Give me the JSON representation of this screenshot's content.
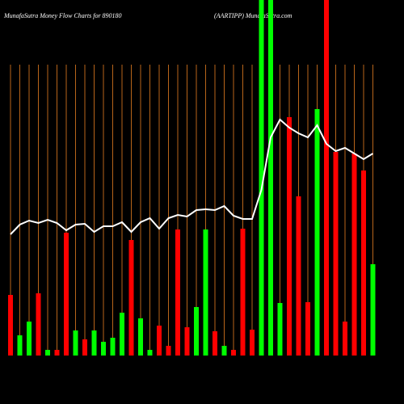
{
  "chart_data": {
    "type": "bar",
    "title": "MunafaSutra  Money Flow  Charts for 890180",
    "subtitle": "(AARTIPP) MunafaSutra.com",
    "categories": [
      null,
      null,
      null,
      null,
      null,
      null,
      null,
      null,
      null,
      null,
      null,
      null,
      null,
      null,
      null,
      null,
      null,
      null,
      null,
      null,
      null,
      null,
      null,
      null,
      null,
      null,
      null,
      null,
      null,
      null,
      null,
      null,
      null,
      null,
      null,
      null,
      null,
      null,
      null,
      null
    ],
    "values": [
      75,
      25,
      42,
      77,
      7,
      7,
      152,
      31,
      20,
      31,
      17,
      22,
      53,
      143,
      46,
      7,
      37,
      12,
      156,
      35,
      60,
      156,
      30,
      12,
      7,
      157,
      32,
      440,
      440,
      65,
      295,
      197,
      66,
      305,
      440,
      252,
      42,
      250,
      229,
      113
    ],
    "bar_colors": [
      "#ff0000",
      "#00ff00",
      "#00ff00",
      "#ff0000",
      "#00ff00",
      "#ff0000",
      "#ff0000",
      "#00ff00",
      "#ff0000",
      "#00ff00",
      "#00ff00",
      "#00ff00",
      "#00ff00",
      "#ff0000",
      "#00ff00",
      "#00ff00",
      "#ff0000",
      "#ff0000",
      "#ff0000",
      "#ff0000",
      "#00ff00",
      "#00ff00",
      "#ff0000",
      "#00ff00",
      "#ff0000",
      "#ff0000",
      "#ff0000",
      "#00ff00",
      "#00ff00",
      "#00ff00",
      "#ff0000",
      "#ff0000",
      "#ff0000",
      "#00ff00",
      "#ff0000",
      "#ff0000",
      "#ff0000",
      "#ff0000",
      "#ff0000",
      "#00ff00"
    ],
    "line_values": [
      150,
      162,
      167,
      164,
      168,
      164,
      155,
      162,
      163,
      153,
      160,
      160,
      165,
      153,
      165,
      170,
      157,
      170,
      174,
      172,
      180,
      181,
      180,
      185,
      173,
      169,
      169,
      205,
      270,
      292,
      282,
      275,
      270,
      285,
      262,
      253,
      257,
      250,
      243,
      250
    ],
    "line_color": "#ffffff",
    "grid_color": "#b8651a",
    "ylim": [
      0,
      440
    ],
    "grid": true
  }
}
